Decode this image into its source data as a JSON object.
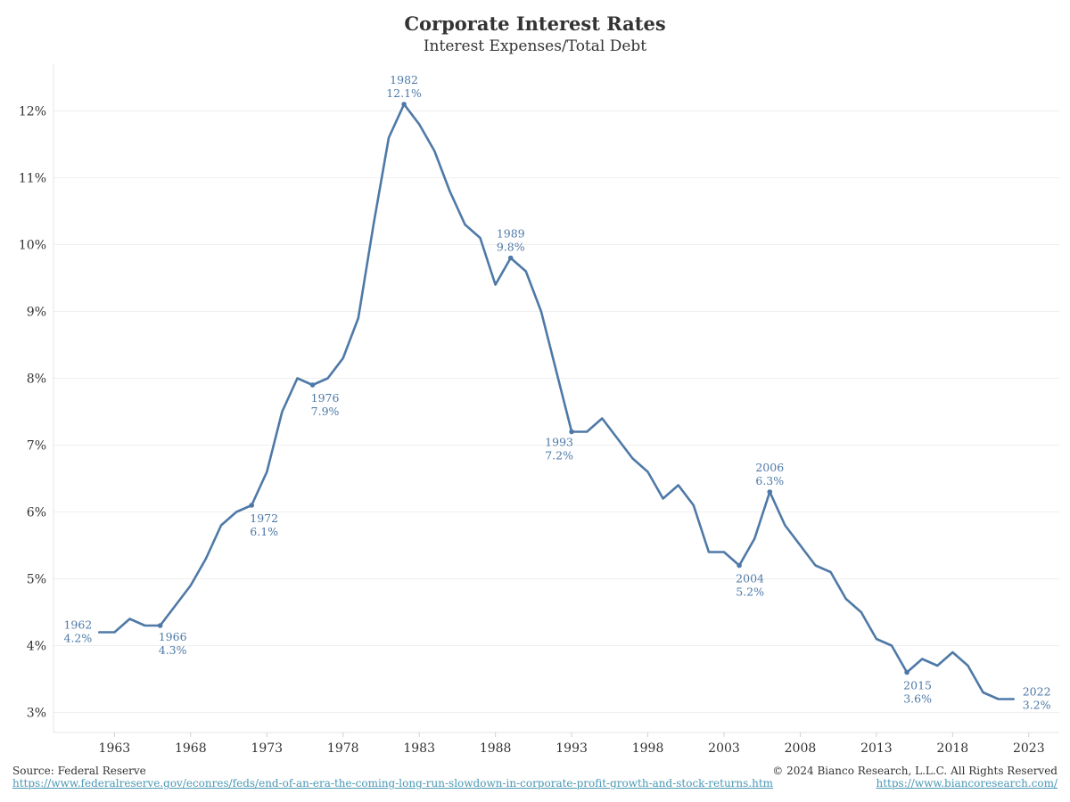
{
  "chart_data": {
    "type": "line",
    "title": "Corporate Interest Rates",
    "subtitle": "Interest Expenses/Total Debt",
    "xlabel": "",
    "ylabel": "",
    "xlim": [
      1959,
      2025
    ],
    "ylim": [
      2.7,
      12.7
    ],
    "grid": true,
    "yticks": [
      3,
      4,
      5,
      6,
      7,
      8,
      9,
      10,
      11,
      12
    ],
    "ytick_labels": [
      "3%",
      "4%",
      "5%",
      "6%",
      "7%",
      "8%",
      "9%",
      "10%",
      "11%",
      "12%"
    ],
    "xticks": [
      1963,
      1968,
      1973,
      1978,
      1983,
      1988,
      1993,
      1998,
      2003,
      2008,
      2013,
      2018,
      2023
    ],
    "xtick_labels": [
      "1963",
      "1968",
      "1973",
      "1978",
      "1983",
      "1988",
      "1993",
      "1998",
      "2003",
      "2008",
      "2013",
      "2018",
      "2023"
    ],
    "line_color": "#4e79a7",
    "series": [
      {
        "x": [
          1962,
          1963,
          1964,
          1965,
          1966,
          1967,
          1968,
          1969,
          1970,
          1971,
          1972,
          1973,
          1974,
          1975,
          1976,
          1977,
          1978,
          1979,
          1980,
          1981,
          1982,
          1983,
          1984,
          1985,
          1986,
          1987,
          1988,
          1989,
          1990,
          1991,
          1992,
          1993,
          1994,
          1995,
          1996,
          1997,
          1998,
          1999,
          2000,
          2001,
          2002,
          2003,
          2004,
          2005,
          2006,
          2007,
          2008,
          2009,
          2010,
          2011,
          2012,
          2013,
          2014,
          2015,
          2016,
          2017,
          2018,
          2019,
          2020,
          2021,
          2022
        ],
        "values": [
          4.2,
          4.2,
          4.4,
          4.3,
          4.3,
          4.6,
          4.9,
          5.3,
          5.8,
          6.0,
          6.1,
          6.6,
          7.5,
          8.0,
          7.9,
          8.0,
          8.3,
          8.9,
          10.3,
          11.6,
          12.1,
          11.8,
          11.4,
          10.8,
          10.3,
          10.1,
          9.4,
          9.8,
          9.6,
          9.0,
          8.1,
          7.2,
          7.2,
          7.4,
          7.1,
          6.8,
          6.6,
          6.2,
          6.4,
          6.1,
          5.4,
          5.4,
          5.2,
          5.6,
          6.3,
          5.8,
          5.5,
          5.2,
          5.1,
          4.7,
          4.5,
          4.1,
          4.0,
          3.6,
          3.8,
          3.7,
          3.9,
          3.7,
          3.3,
          3.2,
          3.2
        ]
      }
    ],
    "annotations": [
      {
        "year": "1962",
        "value": "4.2%",
        "x": 1962,
        "y": 4.2,
        "pos": "left",
        "dot": false
      },
      {
        "year": "1966",
        "value": "4.3%",
        "x": 1966,
        "y": 4.3,
        "pos": "below",
        "dot": true
      },
      {
        "year": "1972",
        "value": "6.1%",
        "x": 1972,
        "y": 6.1,
        "pos": "below",
        "dot": true
      },
      {
        "year": "1976",
        "value": "7.9%",
        "x": 1976,
        "y": 7.9,
        "pos": "below",
        "dot": true
      },
      {
        "year": "1982",
        "value": "12.1%",
        "x": 1982,
        "y": 12.1,
        "pos": "above",
        "dot": true
      },
      {
        "year": "1989",
        "value": "9.8%",
        "x": 1989,
        "y": 9.8,
        "pos": "above",
        "dot": true
      },
      {
        "year": "1993",
        "value": "7.2%",
        "x": 1993,
        "y": 7.2,
        "pos": "below-left",
        "dot": true
      },
      {
        "year": "2004",
        "value": "5.2%",
        "x": 2004,
        "y": 5.2,
        "pos": "below",
        "dot": true
      },
      {
        "year": "2006",
        "value": "6.3%",
        "x": 2006,
        "y": 6.3,
        "pos": "above",
        "dot": true
      },
      {
        "year": "2015",
        "value": "3.6%",
        "x": 2015,
        "y": 3.6,
        "pos": "below",
        "dot": true
      },
      {
        "year": "2022",
        "value": "3.2%",
        "x": 2022,
        "y": 3.2,
        "pos": "right",
        "dot": false
      }
    ]
  },
  "footer": {
    "source_label": "Source: Federal Reserve",
    "source_url": "https://www.federalreserve.gov/econres/feds/end-of-an-era-the-coming-long-run-slowdown-in-corporate-profit-growth-and-stock-returns.htm",
    "copyright": "© 2024 Bianco Research, L.L.C. All Rights Reserved",
    "site_url": "https://www.biancoresearch.com/"
  }
}
